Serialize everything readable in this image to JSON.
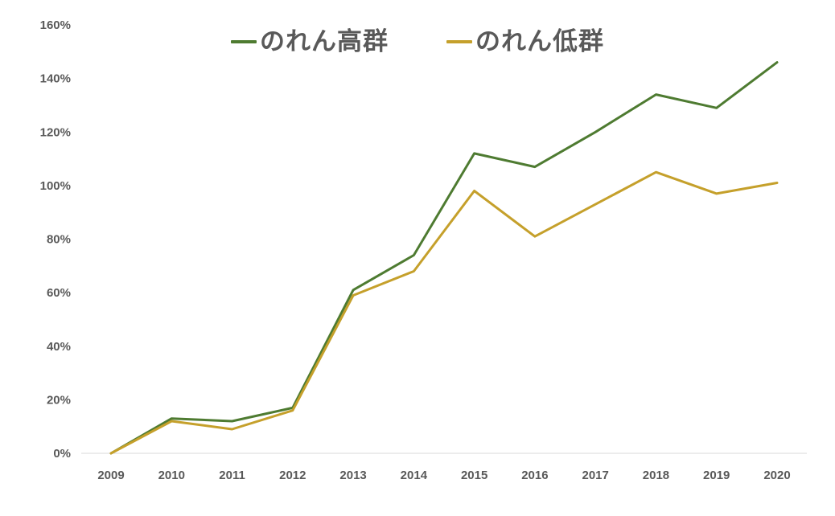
{
  "chart_data": {
    "type": "line",
    "title": "",
    "xlabel": "",
    "ylabel": "",
    "x": [
      "2009",
      "2010",
      "2011",
      "2012",
      "2013",
      "2014",
      "2015",
      "2016",
      "2017",
      "2018",
      "2019",
      "2020"
    ],
    "series": [
      {
        "name": "のれん高群",
        "color": "#4e7b31",
        "values": [
          0,
          13,
          12,
          17,
          61,
          74,
          112,
          107,
          120,
          134,
          129,
          146
        ]
      },
      {
        "name": "のれん低群",
        "color": "#c5a02b",
        "values": [
          0,
          12,
          9,
          16,
          59,
          68,
          98,
          81,
          93,
          105,
          97,
          101
        ]
      }
    ],
    "ylim": [
      0,
      160
    ],
    "ytick_step": 20,
    "ytick_suffix": "%",
    "grid": false,
    "legend_position": "top-center",
    "axis_line_color": "#d9d9d9",
    "tick_label_color": "#595959",
    "line_width": 3
  }
}
